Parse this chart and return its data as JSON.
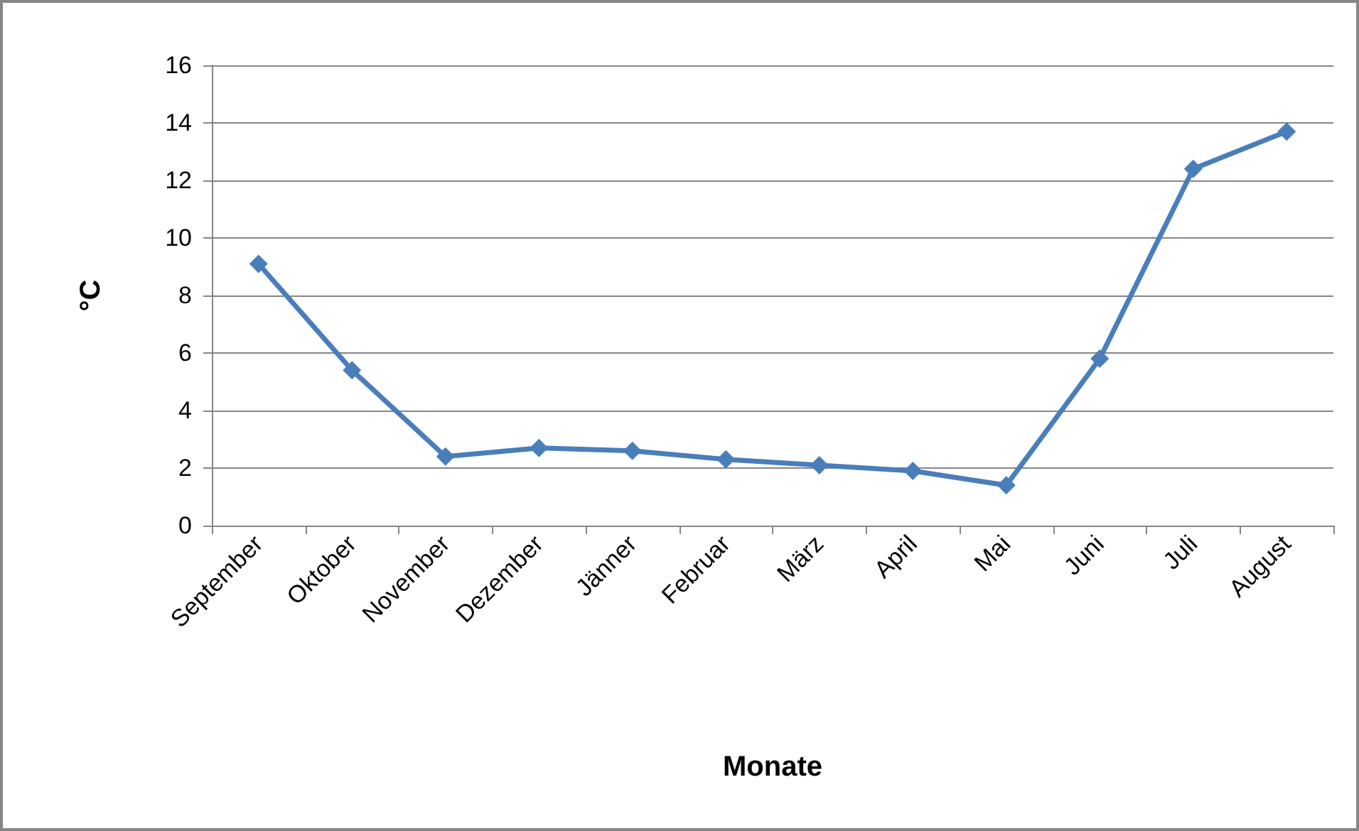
{
  "chart_data": {
    "type": "line",
    "xlabel": "Monate",
    "ylabel": "°C",
    "categories": [
      "September",
      "Oktober",
      "November",
      "Dezember",
      "Jänner",
      "Februar",
      "März",
      "April",
      "Mai",
      "Juni",
      "Juli",
      "August"
    ],
    "series": [
      {
        "color": "#4a7ebb",
        "values": [
          9.1,
          5.4,
          2.4,
          2.7,
          2.6,
          2.3,
          2.1,
          1.9,
          1.4,
          5.8,
          12.4,
          13.7
        ]
      }
    ],
    "ylim": [
      0,
      16
    ],
    "yticks": [
      0,
      2,
      4,
      6,
      8,
      10,
      12,
      14,
      16
    ],
    "grid": "y",
    "marker": "diamond",
    "line_style": "solid"
  }
}
